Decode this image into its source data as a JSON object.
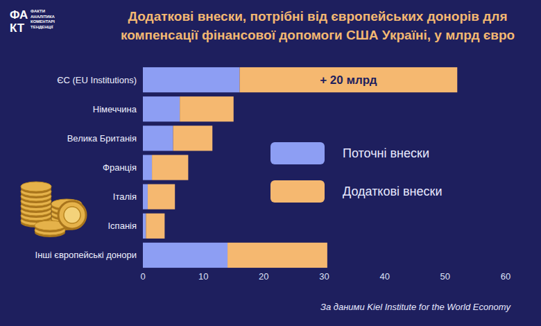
{
  "chart_data": {
    "type": "bar",
    "orientation": "horizontal",
    "stacked": true,
    "title": [
      "Додаткові внески, потрібні від європейських донорів для",
      "компенсації фінансової допомоги США Україні, у млрд євро"
    ],
    "categories": [
      "ЄС (EU Institutions)",
      "Німеччина",
      "Велика Британія",
      "Франція",
      "Італія",
      "Іспанія",
      "Інші європейські донори"
    ],
    "series": [
      {
        "name": "Поточні внески",
        "color": "#8d9ef3",
        "values": [
          16,
          6.1,
          5,
          1.5,
          0.8,
          0.5,
          14
        ]
      },
      {
        "name": "Додаткові внески",
        "color": "#f5b870",
        "values": [
          36,
          8.9,
          6.5,
          6,
          4.5,
          3.1,
          16.5
        ]
      }
    ],
    "xlim": [
      0,
      60
    ],
    "xticks": [
      0,
      10,
      20,
      30,
      40,
      50,
      60
    ],
    "grid": false,
    "legend": "right",
    "data_labels": false,
    "annotation": "+ 20 млрд",
    "source": "За даними Kiel Institute for the World Economy"
  },
  "logo": {
    "mark": [
      "ФА",
      "КТ"
    ],
    "caption": [
      "ФАКТИ",
      "АНАЛІТИКА",
      "КОМЕНТАРІ",
      "ТЕНДЕНЦІЇ"
    ]
  }
}
